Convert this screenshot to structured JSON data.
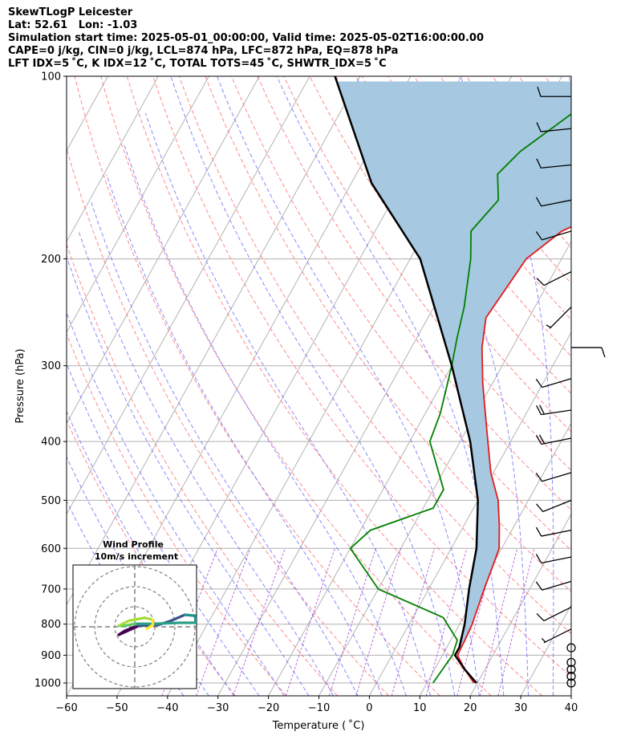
{
  "header": {
    "line1": "SkewTLogP Leicester",
    "line2": "Lat: 52.61   Lon: -1.03",
    "line3": "Simulation start time: 2025-05-01_00:00:00, Valid time: 2025-05-02T16:00:00.00",
    "line4": "CAPE=0 j/kg, CIN=0 j/kg, LCL=874 hPa, LFC=872 hPa, EQ=878 hPa",
    "line5": "LFT IDX=5 ˚C, K IDX=12 ˚C, TOTAL TOTS=45 ˚C, SHWTR_IDX=5 ˚C"
  },
  "chart_data": {
    "type": "line",
    "chart_kind": "skew-T log-P diagram",
    "xlabel": "Temperature ( ˚C)",
    "ylabel": "Pressure (hPa)",
    "xlim": [
      -60,
      40
    ],
    "ylim": [
      1050,
      100
    ],
    "y_scale": "log",
    "x_ticks": [
      -60,
      -50,
      -40,
      -30,
      -20,
      -10,
      0,
      10,
      20,
      30,
      40
    ],
    "y_ticks": [
      1000,
      900,
      800,
      700,
      600,
      500,
      400,
      300,
      200,
      100
    ],
    "grid": true,
    "colors": {
      "temperature": "#e31a1c",
      "dewpoint": "#008000",
      "parcel": "#000000",
      "cape_fill": "#a6c8e0",
      "isotherms": "#b3b3b3",
      "dry_adiabats": "#ff6b6b",
      "moist_adiabats": "#6b6bff",
      "mixing_ratio": "#9b30c9"
    },
    "series": [
      {
        "key": "temperature",
        "points": [
          [
            19.3,
            1000
          ],
          [
            16,
            950
          ],
          [
            13,
            900
          ],
          [
            12.8,
            850
          ],
          [
            12.5,
            800
          ],
          [
            11,
            700
          ],
          [
            10.3,
            650
          ],
          [
            9.5,
            600
          ],
          [
            7,
            550
          ],
          [
            4,
            500
          ],
          [
            -0.5,
            450
          ],
          [
            -4.5,
            400
          ],
          [
            -9,
            350
          ],
          [
            -12,
            320
          ],
          [
            -16,
            280
          ],
          [
            -18.5,
            250
          ],
          [
            -17,
            200
          ],
          [
            -13,
            180
          ],
          [
            -3,
            160
          ],
          [
            5,
            140
          ],
          [
            10,
            125
          ],
          [
            15,
            108
          ],
          [
            17,
            100
          ]
        ]
      },
      {
        "key": "dewpoint",
        "points": [
          [
            11.2,
            1000
          ],
          [
            12,
            900
          ],
          [
            11.3,
            850
          ],
          [
            6,
            780
          ],
          [
            -10,
            700
          ],
          [
            -20,
            600
          ],
          [
            -18,
            560
          ],
          [
            -8,
            515
          ],
          [
            -8,
            480
          ],
          [
            -16,
            400
          ],
          [
            -17,
            360
          ],
          [
            -20,
            300
          ],
          [
            -22,
            270
          ],
          [
            -24,
            240
          ],
          [
            -28,
            200
          ],
          [
            -31,
            180
          ],
          [
            -29,
            160
          ],
          [
            -32,
            145
          ],
          [
            -30,
            133
          ],
          [
            -22,
            110
          ],
          [
            -16,
            100
          ]
        ]
      },
      {
        "key": "parcel",
        "points": [
          [
            19.8,
            1000
          ],
          [
            16,
            950
          ],
          [
            12.5,
            900
          ],
          [
            12.5,
            874
          ],
          [
            11,
            800
          ],
          [
            8,
            700
          ],
          [
            5,
            600
          ],
          [
            0,
            500
          ],
          [
            -8,
            400
          ],
          [
            -20,
            300
          ],
          [
            -38,
            200
          ],
          [
            -56,
            150
          ],
          [
            -75,
            100
          ]
        ]
      }
    ],
    "wind_barbs": [
      {
        "p": 1000,
        "u": 0,
        "v": 0
      },
      {
        "p": 975,
        "u": 0,
        "v": 0
      },
      {
        "p": 950,
        "u": 0,
        "v": 0
      },
      {
        "p": 925,
        "u": 0,
        "v": 0
      },
      {
        "p": 875,
        "u": 0,
        "v": 0
      },
      {
        "p": 815,
        "u": -5,
        "v": -2.5
      },
      {
        "p": 750,
        "u": -10,
        "v": -5
      },
      {
        "p": 680,
        "u": -10,
        "v": -3
      },
      {
        "p": 620,
        "u": -10,
        "v": -2
      },
      {
        "p": 560,
        "u": -10,
        "v": -2
      },
      {
        "p": 500,
        "u": -10,
        "v": -4
      },
      {
        "p": 450,
        "u": -10,
        "v": -3
      },
      {
        "p": 395,
        "u": -20,
        "v": -4
      },
      {
        "p": 355,
        "u": -20,
        "v": -3
      },
      {
        "p": 315,
        "u": -10,
        "v": -3
      },
      {
        "p": 280,
        "u": 10,
        "v": 0
      },
      {
        "p": 240,
        "u": -5,
        "v": -5
      },
      {
        "p": 210,
        "u": -10,
        "v": -5
      },
      {
        "p": 180,
        "u": -10,
        "v": -3
      },
      {
        "p": 160,
        "u": -10,
        "v": -2
      },
      {
        "p": 140,
        "u": -10,
        "v": -1
      },
      {
        "p": 122,
        "u": -10,
        "v": -1
      },
      {
        "p": 108,
        "u": -10,
        "v": 0
      }
    ],
    "inset": {
      "title": "Wind Profile",
      "subtitle": "10m/s increment",
      "hodograph": [
        [
          0,
          0
        ],
        [
          -0.5,
          -0.2
        ],
        [
          -0.8,
          -0.4
        ],
        [
          0.2,
          0.05
        ],
        [
          1.2,
          0.1
        ],
        [
          1.8,
          0.3
        ],
        [
          2.5,
          0.6
        ],
        [
          3.0,
          0.55
        ],
        [
          3.05,
          0.2
        ],
        [
          2.2,
          0.2
        ],
        [
          1.0,
          0.15
        ],
        [
          0.0,
          0.15
        ],
        [
          -0.5,
          0.05
        ],
        [
          -0.8,
          0.05
        ],
        [
          -0.3,
          0.3
        ],
        [
          0.5,
          0.45
        ],
        [
          0.9,
          0.35
        ],
        [
          0.9,
          0.1
        ],
        [
          0.6,
          -0.1
        ]
      ]
    }
  }
}
